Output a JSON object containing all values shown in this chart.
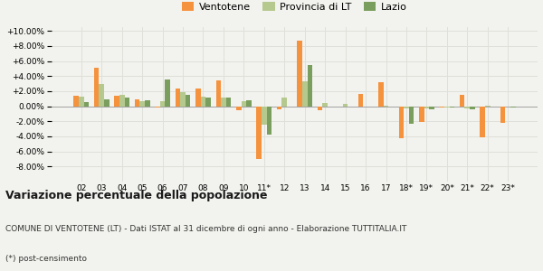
{
  "categories": [
    "02",
    "03",
    "04",
    "05",
    "06",
    "07",
    "08",
    "09",
    "10",
    "11*",
    "12",
    "13",
    "14",
    "15",
    "16",
    "17",
    "18*",
    "19*",
    "20*",
    "21*",
    "22*",
    "23*"
  ],
  "ventotene": [
    1.4,
    5.1,
    1.4,
    0.9,
    -0.2,
    2.4,
    2.4,
    3.4,
    -0.5,
    -7.0,
    -0.4,
    8.7,
    -0.5,
    -0.1,
    1.6,
    3.2,
    -4.3,
    -2.1,
    -0.2,
    1.5,
    -4.1,
    -2.2
  ],
  "provincia_lt": [
    1.3,
    3.0,
    1.5,
    0.7,
    0.7,
    1.9,
    1.3,
    1.2,
    0.7,
    -2.4,
    1.2,
    3.3,
    0.4,
    0.3,
    0.0,
    0.1,
    -0.3,
    -0.3,
    -0.2,
    -0.3,
    0.1,
    -0.1
  ],
  "lazio": [
    0.5,
    0.9,
    1.2,
    0.8,
    3.6,
    1.5,
    1.2,
    1.1,
    0.8,
    -3.8,
    0.0,
    5.5,
    0.0,
    0.0,
    0.0,
    0.0,
    -2.3,
    -0.4,
    -0.2,
    -0.4,
    0.0,
    -0.2
  ],
  "color_ventotene": "#f5923e",
  "color_provincia": "#b5c98e",
  "color_lazio": "#7a9e5e",
  "bg_color": "#f2f2ee",
  "grid_color": "#e0e0da",
  "title1": "Variazione percentuale della popolazione",
  "subtitle": "COMUNE DI VENTOTENE (LT) - Dati ISTAT al 31 dicembre di ogni anno - Elaborazione TUTTITALIA.IT",
  "footnote": "(*) post-censimento",
  "ylim": [
    -10.0,
    10.5
  ],
  "yticks": [
    -8.0,
    -6.0,
    -4.0,
    -2.0,
    0.0,
    2.0,
    4.0,
    6.0,
    8.0,
    10.0
  ]
}
